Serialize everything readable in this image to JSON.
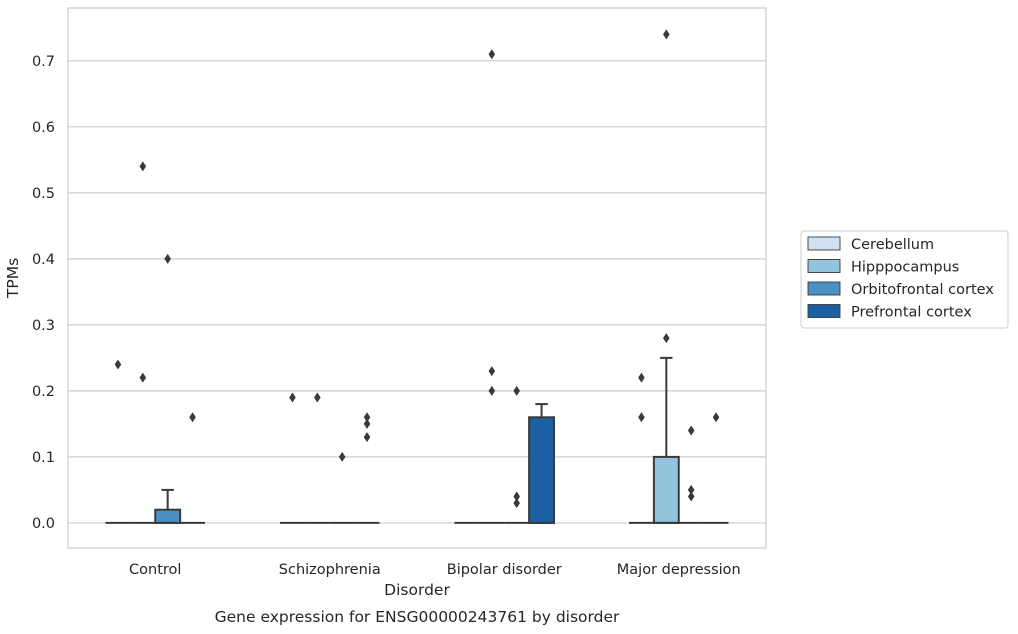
{
  "chart_data": {
    "type": "box",
    "title": "",
    "caption": "Gene expression for ENSG00000243761 by disorder",
    "xlabel": "Disorder",
    "ylabel": "TPMs",
    "ylim": [
      -0.038,
      0.78
    ],
    "yticks": [
      "0.0",
      "0.1",
      "0.2",
      "0.3",
      "0.4",
      "0.5",
      "0.6",
      "0.7"
    ],
    "grid": "horizontal",
    "legend_position": "right",
    "categories": [
      "Control",
      "Schizophrenia",
      "Bipolar disorder",
      "Major depression"
    ],
    "series": [
      {
        "name": "Cerebellum",
        "color": "#cfe1f2",
        "boxes": [
          {
            "q1": 0,
            "median": 0,
            "q3": 0,
            "whisker_low": 0,
            "whisker_high": 0,
            "outliers": [
              0.24
            ]
          },
          {
            "q1": 0,
            "median": 0,
            "q3": 0,
            "whisker_low": 0,
            "whisker_high": 0,
            "outliers": [
              0.19
            ]
          },
          {
            "q1": 0,
            "median": 0,
            "q3": 0,
            "whisker_low": 0,
            "whisker_high": 0,
            "outliers": []
          },
          {
            "q1": 0,
            "median": 0,
            "q3": 0,
            "whisker_low": 0,
            "whisker_high": 0,
            "outliers": [
              0.16,
              0.22
            ]
          }
        ]
      },
      {
        "name": "Hipppocampus",
        "color": "#93c4de",
        "boxes": [
          {
            "q1": 0,
            "median": 0,
            "q3": 0,
            "whisker_low": 0,
            "whisker_high": 0,
            "outliers": [
              0.22,
              0.54
            ]
          },
          {
            "q1": 0,
            "median": 0,
            "q3": 0,
            "whisker_low": 0,
            "whisker_high": 0,
            "outliers": [
              0.19
            ]
          },
          {
            "q1": 0,
            "median": 0,
            "q3": 0,
            "whisker_low": 0,
            "whisker_high": 0,
            "outliers": [
              0.2,
              0.23,
              0.71
            ]
          },
          {
            "q1": 0,
            "median": 0,
            "q3": 0.1,
            "whisker_low": 0,
            "whisker_high": 0.25,
            "outliers": [
              0.28,
              0.74
            ]
          }
        ]
      },
      {
        "name": "Orbitofrontal cortex",
        "color": "#4a90c2",
        "boxes": [
          {
            "q1": 0,
            "median": 0,
            "q3": 0.02,
            "whisker_low": 0,
            "whisker_high": 0.05,
            "outliers": [
              0.4
            ]
          },
          {
            "q1": 0,
            "median": 0,
            "q3": 0,
            "whisker_low": 0,
            "whisker_high": 0,
            "outliers": [
              0.1
            ]
          },
          {
            "q1": 0,
            "median": 0,
            "q3": 0,
            "whisker_low": 0,
            "whisker_high": 0,
            "outliers": [
              0.03,
              0.04,
              0.2
            ]
          },
          {
            "q1": 0,
            "median": 0,
            "q3": 0,
            "whisker_low": 0,
            "whisker_high": 0,
            "outliers": [
              0.04,
              0.05,
              0.14
            ]
          }
        ]
      },
      {
        "name": "Prefrontal cortex",
        "color": "#1c5fa3",
        "boxes": [
          {
            "q1": 0,
            "median": 0,
            "q3": 0,
            "whisker_low": 0,
            "whisker_high": 0,
            "outliers": [
              0.16
            ]
          },
          {
            "q1": 0,
            "median": 0,
            "q3": 0,
            "whisker_low": 0,
            "whisker_high": 0,
            "outliers": [
              0.13,
              0.15,
              0.16
            ]
          },
          {
            "q1": 0,
            "median": 0,
            "q3": 0.16,
            "whisker_low": 0,
            "whisker_high": 0.18,
            "outliers": []
          },
          {
            "q1": 0,
            "median": 0,
            "q3": 0,
            "whisker_low": 0,
            "whisker_high": 0,
            "outliers": [
              0.16
            ]
          }
        ]
      }
    ]
  }
}
